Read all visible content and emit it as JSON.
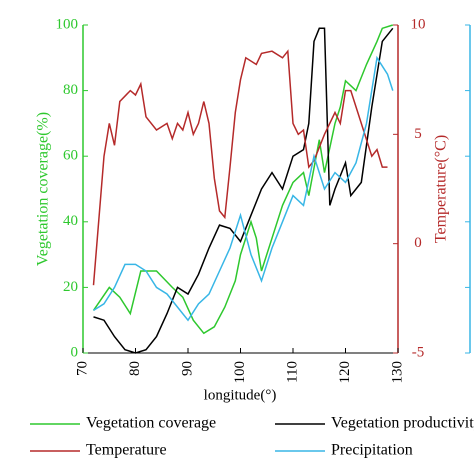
{
  "chart_data": {
    "type": "line",
    "xlabel": "longitude(°)",
    "ylabel": "Vegetation coverage(%)",
    "y2label": "Temperature(°C)",
    "xlim": [
      70,
      130
    ],
    "xticks": [
      70,
      80,
      90,
      100,
      110,
      120,
      130
    ],
    "ylim": [
      0,
      100
    ],
    "yticks": [
      0,
      20,
      40,
      60,
      80,
      100
    ],
    "ycolor": "#2ec82e",
    "y2lim": [
      -5,
      10
    ],
    "y2ticks": [
      -5,
      0,
      5,
      10
    ],
    "y2color": "#b52a2a",
    "legend": "bottom",
    "series": [
      {
        "name": "Vegetation coverage",
        "color": "#2ec82e",
        "x": [
          72,
          75,
          77,
          79,
          81,
          84,
          87,
          89,
          91,
          93,
          95,
          97,
          99,
          100,
          102,
          103,
          104,
          106,
          108,
          110,
          112,
          113,
          115,
          116,
          118,
          119,
          120,
          122,
          124,
          126,
          127,
          129
        ],
        "values": [
          13,
          20,
          17,
          12,
          25,
          25,
          20,
          17,
          10,
          6,
          8,
          14,
          22,
          30,
          40,
          35,
          25,
          35,
          45,
          52,
          55,
          48,
          65,
          55,
          70,
          75,
          83,
          80,
          88,
          95,
          99,
          100
        ]
      },
      {
        "name": "Vegetation productivity",
        "color": "#000000",
        "x": [
          72,
          74,
          76,
          78,
          80,
          82,
          84,
          86,
          88,
          90,
          92,
          94,
          96,
          98,
          100,
          102,
          104,
          106,
          108,
          110,
          112,
          113,
          114,
          115,
          116,
          117,
          118,
          120,
          121,
          123,
          125,
          127,
          129
        ],
        "values": [
          11,
          10,
          5,
          1,
          0,
          1,
          5,
          12,
          20,
          18,
          24,
          32,
          39,
          38,
          34,
          42,
          50,
          55,
          50,
          60,
          62,
          70,
          95,
          99,
          99,
          45,
          50,
          58,
          48,
          52,
          75,
          95,
          99
        ]
      },
      {
        "name": "Temperature",
        "color": "#b52a2a",
        "axis": "y2",
        "x": [
          72,
          74,
          75,
          76,
          77,
          79,
          80,
          81,
          82,
          84,
          86,
          87,
          88,
          89,
          90,
          91,
          92,
          93,
          94,
          95,
          96,
          97,
          98,
          99,
          100,
          101,
          103,
          104,
          106,
          108,
          109,
          110,
          111,
          112,
          113,
          114,
          116,
          118,
          119,
          120,
          121,
          123,
          125,
          126,
          127,
          128
        ],
        "values": [
          -1.9,
          4,
          5.5,
          4.5,
          6.5,
          7,
          6.8,
          7.3,
          5.8,
          5.2,
          5.5,
          4.8,
          5.5,
          5.2,
          6,
          5,
          5.5,
          6.5,
          5.5,
          3,
          1.5,
          1.2,
          3.5,
          6,
          7.5,
          8.5,
          8.2,
          8.7,
          8.8,
          8.5,
          8.8,
          5.5,
          5,
          5.2,
          3.5,
          3.8,
          5,
          6,
          5.5,
          7,
          7,
          5.5,
          4,
          4.3,
          3.5,
          3.5
        ]
      },
      {
        "name": "Precipitation",
        "color": "#38b6e6",
        "x": [
          72,
          74,
          76,
          78,
          80,
          82,
          84,
          86,
          88,
          90,
          92,
          94,
          96,
          98,
          100,
          102,
          104,
          106,
          108,
          110,
          112,
          114,
          116,
          118,
          120,
          122,
          124,
          126,
          128,
          129
        ],
        "values": [
          13,
          15,
          20,
          27,
          27,
          25,
          20,
          18,
          14,
          10,
          15,
          18,
          25,
          32,
          42,
          30,
          22,
          32,
          40,
          48,
          45,
          60,
          50,
          55,
          52,
          58,
          70,
          90,
          85,
          80
        ]
      }
    ]
  }
}
